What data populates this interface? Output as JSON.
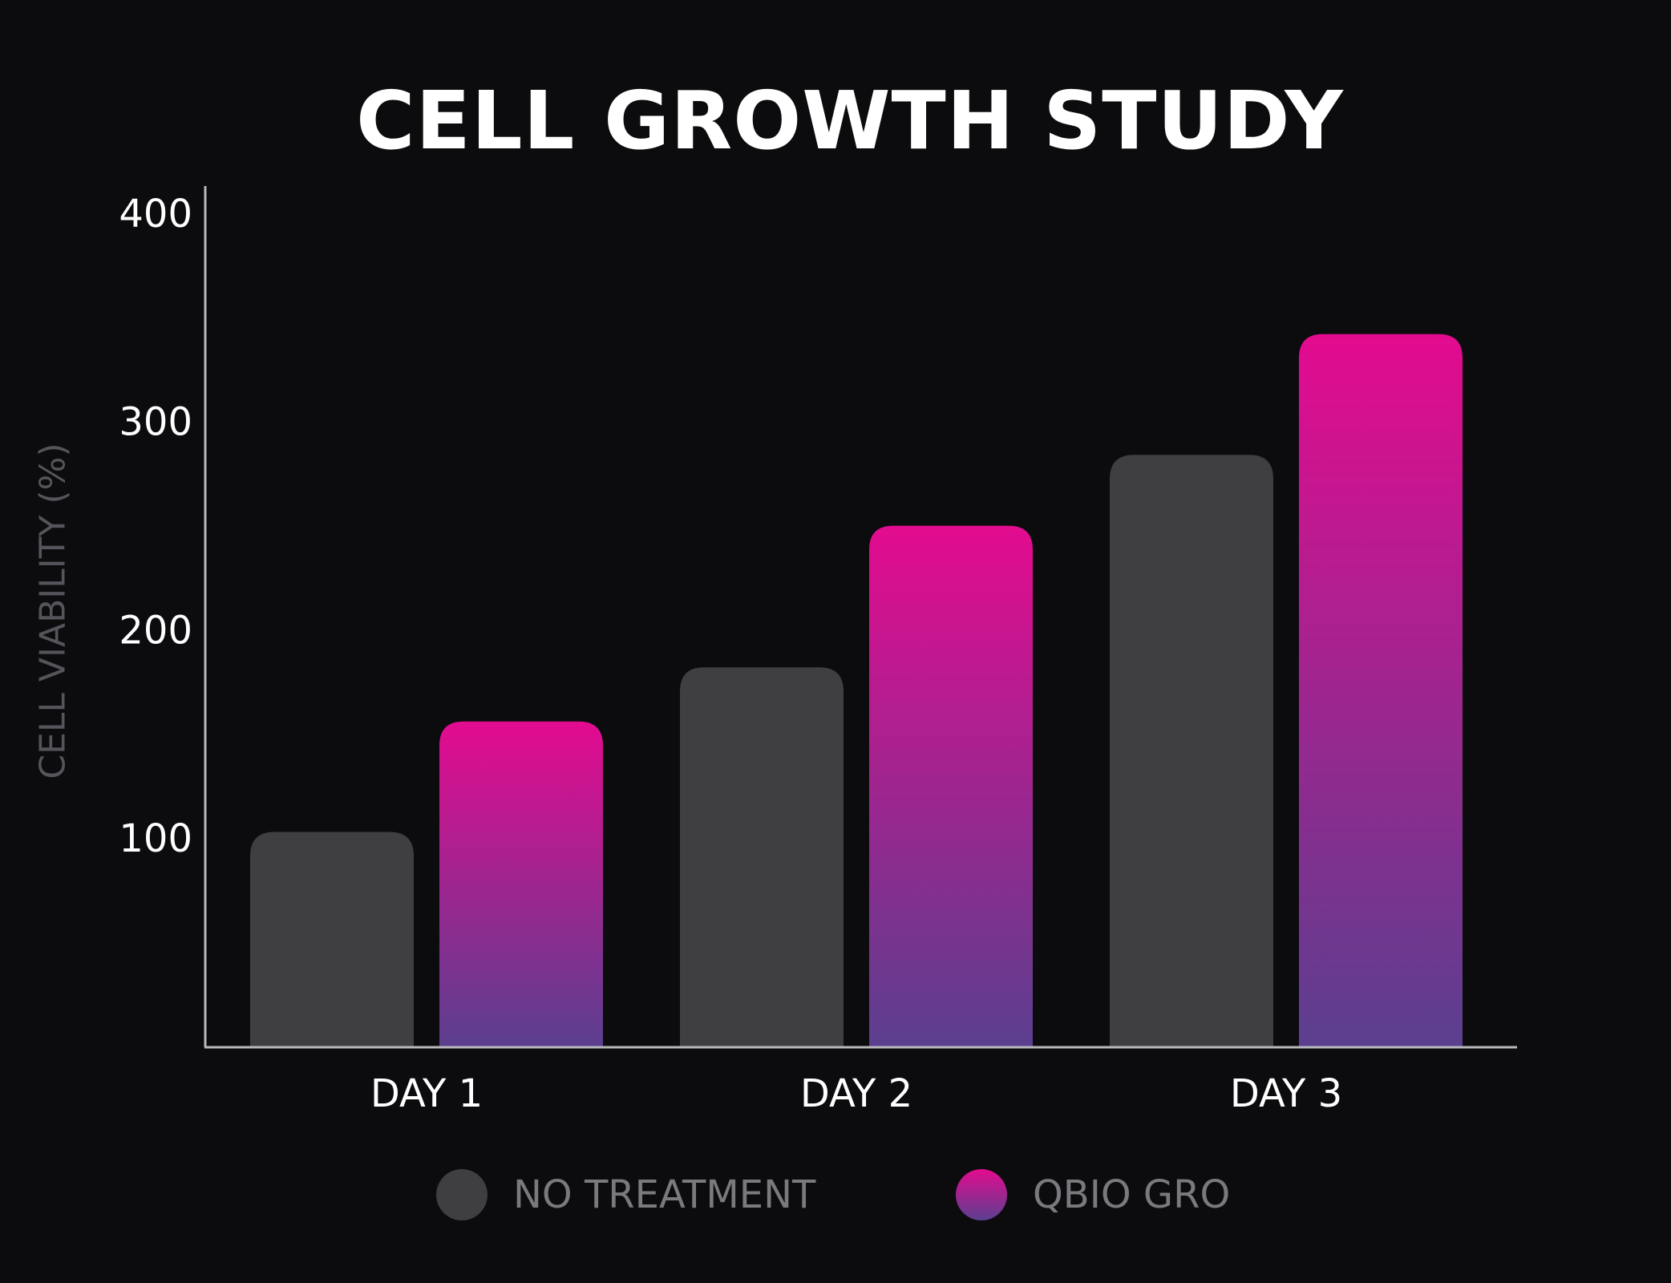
{
  "chart_data": {
    "type": "bar",
    "title": "CELL GROWTH STUDY",
    "xlabel": "",
    "ylabel": "CELL VIABILITY (%)",
    "categories": [
      "DAY 1",
      "DAY 2",
      "DAY 3"
    ],
    "series": [
      {
        "name": "NO TREATMENT",
        "values": [
          103,
          182,
          284
        ],
        "color": "#3f3e41"
      },
      {
        "name": "QBIO GRO",
        "values": [
          156,
          250,
          342
        ],
        "color_top": "#e30b8f",
        "color_bottom": "#5b3f8f"
      }
    ],
    "ylim": [
      0,
      410
    ],
    "yticks": [
      100,
      200,
      300,
      400
    ],
    "grid": false,
    "legend": "bottom-center"
  }
}
